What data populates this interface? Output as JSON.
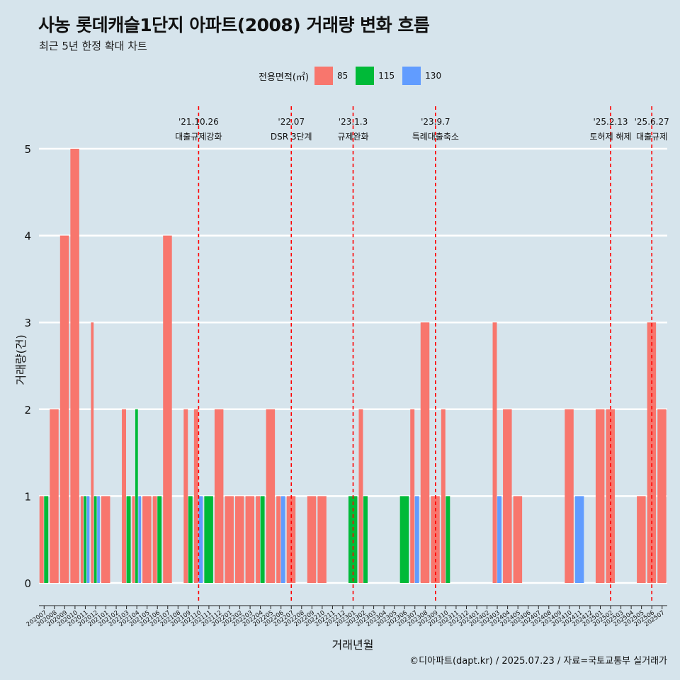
{
  "title": "사농 롯데캐슬1단지 아파트(2008) 거래량 변화 흐름",
  "subtitle": "최근 5년 한정 확대 차트",
  "caption": "©디아파트(dapt.kr) / 2025.07.23 / 자료=국토교통부 실거래가",
  "colors": {
    "background": "#d6e4ec",
    "s85": "#f8766d",
    "s115": "#00ba38",
    "s130": "#619cff",
    "event_line": "#ff0000"
  },
  "chart_data": {
    "type": "bar",
    "xlabel": "거래년월",
    "ylabel": "거래량(건)",
    "ylim": [
      0,
      5
    ],
    "yticks": [
      0,
      1,
      2,
      3,
      4,
      5
    ],
    "grid": "horizontal",
    "legend": {
      "title": "전용면적(㎡)",
      "position": "top"
    },
    "categories": [
      "202007",
      "202008",
      "202009",
      "202010",
      "202011",
      "202012",
      "202101",
      "202102",
      "202103",
      "202104",
      "202105",
      "202106",
      "202107",
      "202108",
      "202109",
      "202110",
      "202111",
      "202112",
      "202201",
      "202202",
      "202203",
      "202204",
      "202205",
      "202206",
      "202207",
      "202208",
      "202209",
      "202210",
      "202211",
      "202212",
      "202301",
      "202302",
      "202303",
      "202304",
      "202305",
      "202306",
      "202307",
      "202308",
      "202309",
      "202310",
      "202311",
      "202312",
      "202401",
      "202402",
      "202403",
      "202404",
      "202405",
      "202406",
      "202407",
      "202408",
      "202409",
      "202410",
      "202411",
      "202412",
      "202501",
      "202502",
      "202503",
      "202504",
      "202505",
      "202506",
      "202507"
    ],
    "series": [
      {
        "name": "85",
        "values": [
          1,
          2,
          4,
          5,
          1,
          3,
          1,
          0,
          2,
          1,
          1,
          1,
          4,
          0,
          2,
          2,
          0,
          2,
          1,
          1,
          1,
          1,
          2,
          1,
          1,
          0,
          1,
          1,
          0,
          0,
          0,
          2,
          0,
          0,
          0,
          0,
          2,
          3,
          1,
          2,
          0,
          0,
          0,
          0,
          3,
          2,
          1,
          0,
          0,
          0,
          0,
          2,
          0,
          0,
          2,
          2,
          0,
          0,
          1,
          3,
          2
        ]
      },
      {
        "name": "115",
        "values": [
          1,
          0,
          0,
          0,
          1,
          1,
          0,
          0,
          1,
          2,
          0,
          1,
          0,
          0,
          1,
          0,
          1,
          0,
          0,
          0,
          0,
          1,
          0,
          0,
          0,
          0,
          0,
          0,
          0,
          0,
          1,
          1,
          0,
          0,
          0,
          1,
          0,
          0,
          0,
          1,
          0,
          0,
          0,
          0,
          0,
          0,
          0,
          0,
          0,
          0,
          0,
          0,
          0,
          0,
          0,
          0,
          0,
          0,
          0,
          0,
          0
        ]
      },
      {
        "name": "130",
        "values": [
          0,
          0,
          0,
          0,
          1,
          1,
          0,
          0,
          0,
          1,
          0,
          0,
          0,
          0,
          0,
          1,
          0,
          0,
          0,
          0,
          0,
          0,
          0,
          1,
          0,
          0,
          0,
          0,
          0,
          0,
          0,
          0,
          0,
          0,
          0,
          0,
          1,
          0,
          0,
          0,
          0,
          0,
          0,
          0,
          1,
          0,
          0,
          0,
          0,
          0,
          0,
          0,
          1,
          0,
          0,
          0,
          0,
          0,
          0,
          0,
          0
        ]
      }
    ],
    "events": [
      {
        "month": "202110",
        "date": "'21.10.26",
        "label": "대출규제강화"
      },
      {
        "month": "202207",
        "date": "'22.07",
        "label": "DSR 3단계"
      },
      {
        "month": "202301",
        "date": "'23.1.3",
        "label": "규제완화"
      },
      {
        "month": "202309",
        "date": "'23.9.7",
        "label": "특례대출축소"
      },
      {
        "month": "202502",
        "date": "'25.2.13",
        "label": "토허제 해제"
      },
      {
        "month": "202506",
        "date": "'25.6.27",
        "label": "대출규제"
      }
    ]
  }
}
